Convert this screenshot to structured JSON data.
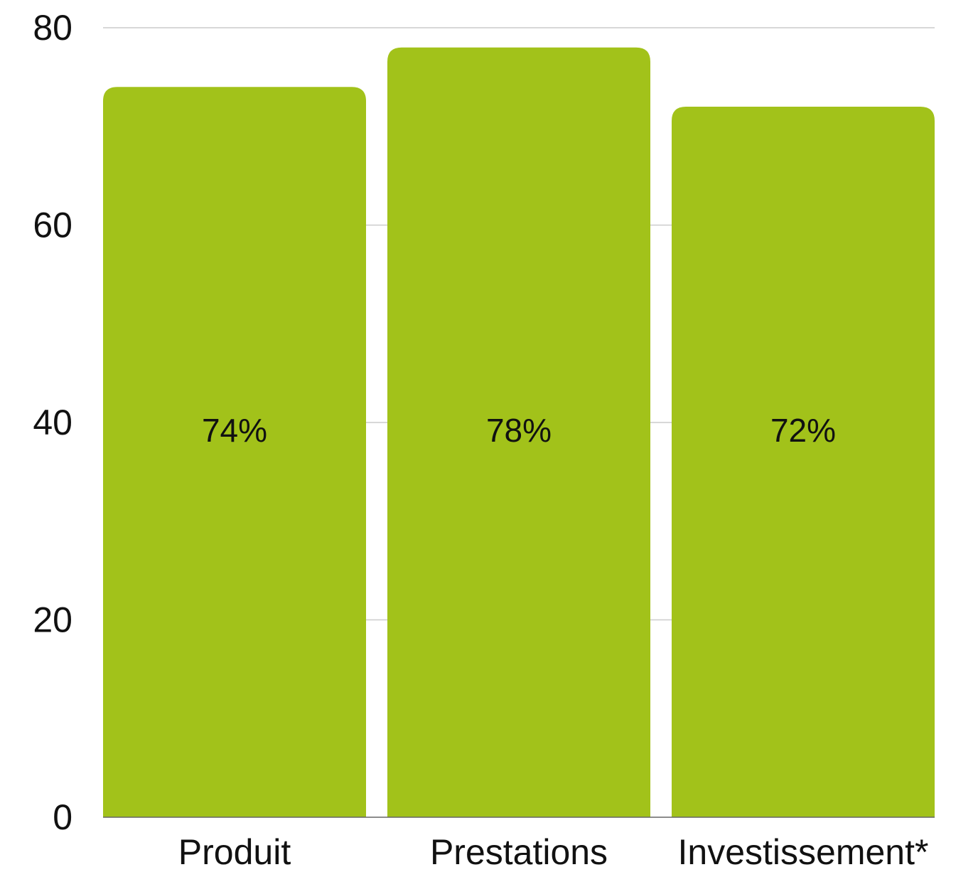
{
  "chart_data": {
    "type": "bar",
    "categories": [
      "Produit",
      "Prestations",
      "Investissement*"
    ],
    "values": [
      74,
      78,
      72
    ],
    "data_labels": [
      "74%",
      "78%",
      "72%"
    ],
    "y_ticks": [
      "0",
      "20",
      "40",
      "60",
      "80"
    ],
    "ylim": [
      0,
      80
    ],
    "grid": true,
    "bar_color": "#a2c21a",
    "title": "",
    "xlabel": "",
    "ylabel": ""
  }
}
